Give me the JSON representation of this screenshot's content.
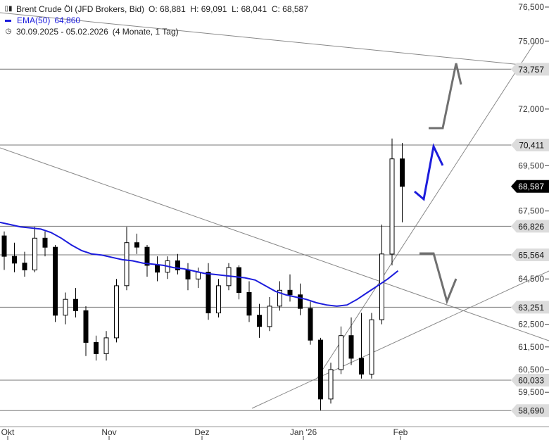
{
  "header": {
    "instrument": "Brent Crude Öl (JFD Brokers, Bid)",
    "ohlc": "O: 68,881  H: 69,091  L: 68,041  C: 68,587",
    "ema_label": "EMA(50)",
    "ema_value": "64,860",
    "range": "30.09.2025 - 05.02.2026",
    "period": "(4 Monate, 1 Tag)"
  },
  "colors": {
    "ema": "#1c1cdc",
    "candle": "#000000",
    "grid_line": "#777777",
    "projection_bull": "#1c1cdc",
    "projection_gray": "#707070",
    "price_box": "#000000"
  },
  "chart_data": {
    "type": "candlestick",
    "y_axis_ticks": [
      "76,500",
      "75,000",
      "72,000",
      "69,500",
      "67,500",
      "64,500",
      "62,500",
      "61,500",
      "60,500",
      "59,500"
    ],
    "x_axis_ticks": [
      "Okt",
      "Nov",
      "Dez",
      "Jan '26",
      "Feb"
    ],
    "price_levels": [
      {
        "label": "73,757",
        "value": 73.757
      },
      {
        "label": "70,411",
        "value": 70.411
      },
      {
        "label": "66,826",
        "value": 66.826
      },
      {
        "label": "65,564",
        "value": 65.564
      },
      {
        "label": "63,251",
        "value": 63.251
      },
      {
        "label": "60,033",
        "value": 60.033
      },
      {
        "label": "58,690",
        "value": 58.69
      }
    ],
    "current_price": {
      "label": "68,587",
      "value": 68.587
    },
    "ema50": [
      67.0,
      66.9,
      66.8,
      66.75,
      66.7,
      66.55,
      66.3,
      66.0,
      65.75,
      65.6,
      65.55,
      65.45,
      65.35,
      65.3,
      65.2,
      65.15,
      65.1,
      65.0,
      64.95,
      64.85,
      64.75,
      64.7,
      64.65,
      64.6,
      64.55,
      64.45,
      64.2,
      63.95,
      63.8,
      63.7,
      63.6,
      63.45,
      63.35,
      63.3,
      63.35,
      63.6,
      63.9,
      64.2,
      64.5,
      64.86
    ],
    "candles": [
      {
        "o": 66.4,
        "h": 66.6,
        "l": 64.9,
        "c": 65.5
      },
      {
        "o": 65.5,
        "h": 66.1,
        "l": 64.8,
        "c": 65.2
      },
      {
        "o": 65.2,
        "h": 65.7,
        "l": 64.6,
        "c": 64.9
      },
      {
        "o": 64.9,
        "h": 66.8,
        "l": 64.8,
        "c": 66.3
      },
      {
        "o": 66.3,
        "h": 66.6,
        "l": 65.5,
        "c": 65.9
      },
      {
        "o": 65.9,
        "h": 66.0,
        "l": 62.6,
        "c": 62.9
      },
      {
        "o": 62.9,
        "h": 63.9,
        "l": 62.5,
        "c": 63.6
      },
      {
        "o": 63.6,
        "h": 64.1,
        "l": 62.8,
        "c": 63.1
      },
      {
        "o": 63.1,
        "h": 63.3,
        "l": 61.1,
        "c": 61.7
      },
      {
        "o": 61.7,
        "h": 62.0,
        "l": 60.9,
        "c": 61.2
      },
      {
        "o": 61.2,
        "h": 62.2,
        "l": 60.9,
        "c": 61.9
      },
      {
        "o": 61.9,
        "h": 64.5,
        "l": 61.7,
        "c": 64.2
      },
      {
        "o": 64.2,
        "h": 66.8,
        "l": 64.0,
        "c": 66.1
      },
      {
        "o": 66.1,
        "h": 66.5,
        "l": 65.6,
        "c": 65.9
      },
      {
        "o": 65.9,
        "h": 66.0,
        "l": 64.6,
        "c": 65.1
      },
      {
        "o": 65.1,
        "h": 65.5,
        "l": 64.4,
        "c": 64.8
      },
      {
        "o": 64.8,
        "h": 65.5,
        "l": 64.5,
        "c": 65.3
      },
      {
        "o": 65.3,
        "h": 65.6,
        "l": 64.7,
        "c": 64.9
      },
      {
        "o": 64.9,
        "h": 65.2,
        "l": 64.0,
        "c": 64.5
      },
      {
        "o": 64.5,
        "h": 65.0,
        "l": 64.1,
        "c": 64.8
      },
      {
        "o": 64.8,
        "h": 65.2,
        "l": 62.7,
        "c": 63.0
      },
      {
        "o": 63.0,
        "h": 64.5,
        "l": 62.8,
        "c": 64.2
      },
      {
        "o": 64.2,
        "h": 65.2,
        "l": 64.0,
        "c": 65.0
      },
      {
        "o": 65.0,
        "h": 65.1,
        "l": 63.6,
        "c": 63.9
      },
      {
        "o": 63.9,
        "h": 64.4,
        "l": 62.6,
        "c": 62.9
      },
      {
        "o": 62.9,
        "h": 63.4,
        "l": 61.9,
        "c": 62.4
      },
      {
        "o": 62.4,
        "h": 63.7,
        "l": 62.2,
        "c": 63.3
      },
      {
        "o": 63.3,
        "h": 64.4,
        "l": 63.1,
        "c": 64.0
      },
      {
        "o": 64.0,
        "h": 64.7,
        "l": 63.5,
        "c": 63.8
      },
      {
        "o": 63.8,
        "h": 64.3,
        "l": 62.9,
        "c": 63.2
      },
      {
        "o": 63.2,
        "h": 63.5,
        "l": 61.6,
        "c": 61.8
      },
      {
        "o": 61.8,
        "h": 61.9,
        "l": 58.7,
        "c": 59.2
      },
      {
        "o": 59.2,
        "h": 60.8,
        "l": 59.0,
        "c": 60.5
      },
      {
        "o": 60.5,
        "h": 62.4,
        "l": 60.3,
        "c": 62.0
      },
      {
        "o": 62.0,
        "h": 62.8,
        "l": 60.7,
        "c": 61.0
      },
      {
        "o": 61.0,
        "h": 63.0,
        "l": 60.1,
        "c": 60.3
      },
      {
        "o": 60.3,
        "h": 63.0,
        "l": 60.1,
        "c": 62.7
      },
      {
        "o": 62.7,
        "h": 66.9,
        "l": 62.5,
        "c": 65.6
      },
      {
        "o": 65.6,
        "h": 70.7,
        "l": 65.1,
        "c": 69.8
      },
      {
        "o": 69.8,
        "h": 70.5,
        "l": 67.0,
        "c": 68.587
      }
    ]
  }
}
